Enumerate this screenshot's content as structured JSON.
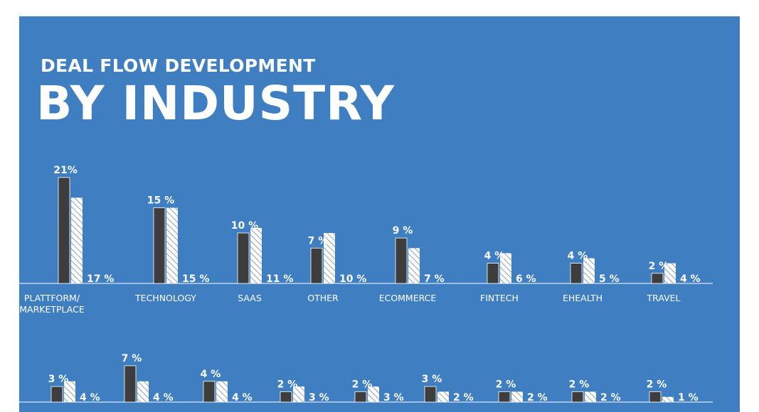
{
  "header": {
    "subtitle": "DEAL FLOW DEVELOPMENT",
    "title": "BY INDUSTRY"
  },
  "colors": {
    "background": "#3f7fc1",
    "dark_bar": "#3d3d3d",
    "hatched_bar": "#ffffff",
    "text": "#ffffff"
  },
  "chart_data": [
    {
      "type": "bar",
      "legend": "none",
      "grid": false,
      "categories": [
        "PLATTFORM/\nMARKETPLACE",
        "TECHNOLOGY",
        "SAAS",
        "OTHER",
        "ECOMMERCE",
        "FINTECH",
        "EHEALTH",
        "TRAVEL"
      ],
      "series": [
        {
          "style": "solid-dark",
          "values": [
            21,
            15,
            10,
            7,
            9,
            4,
            4,
            2
          ],
          "labels": [
            "21%",
            "15 %",
            "10 %",
            "7 %",
            "9 %",
            "4 %",
            "4 %",
            "2 %"
          ]
        },
        {
          "style": "hatched",
          "values": [
            17,
            15,
            11,
            10,
            7,
            6,
            5,
            4
          ],
          "labels": [
            "17 %",
            "15 %",
            "11 %",
            "10 %",
            "7 %",
            "6 %",
            "5 %",
            "4 %"
          ]
        }
      ]
    },
    {
      "type": "bar",
      "legend": "none",
      "grid": false,
      "categories": [
        "",
        "",
        "",
        "",
        "",
        "",
        "",
        "",
        ""
      ],
      "series": [
        {
          "style": "solid-dark",
          "values": [
            3,
            7,
            4,
            2,
            2,
            3,
            2,
            2,
            2
          ],
          "labels": [
            "3 %",
            "7 %",
            "4 %",
            "2 %",
            "2 %",
            "3 %",
            "2 %",
            "2 %",
            "2 %"
          ]
        },
        {
          "style": "hatched",
          "values": [
            4,
            4,
            4,
            3,
            3,
            2,
            2,
            2,
            1
          ],
          "labels": [
            "4 %",
            "4 %",
            "4 %",
            "3 %",
            "3 %",
            "2 %",
            "2 %",
            "2 %",
            "1 %"
          ]
        }
      ]
    }
  ]
}
